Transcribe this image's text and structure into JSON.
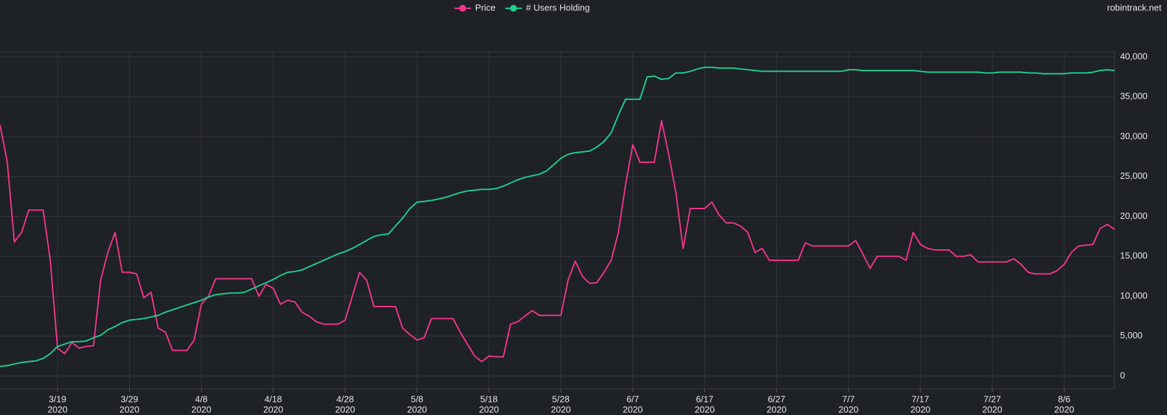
{
  "chart_data": {
    "type": "line",
    "watermark": "robintrack.net",
    "x": [
      "2020-03-11",
      "2020-03-12",
      "2020-03-13",
      "2020-03-14",
      "2020-03-15",
      "2020-03-16",
      "2020-03-17",
      "2020-03-18",
      "2020-03-19",
      "2020-03-20",
      "2020-03-21",
      "2020-03-22",
      "2020-03-23",
      "2020-03-24",
      "2020-03-25",
      "2020-03-26",
      "2020-03-27",
      "2020-03-28",
      "2020-03-29",
      "2020-03-30",
      "2020-03-31",
      "2020-04-01",
      "2020-04-02",
      "2020-04-03",
      "2020-04-04",
      "2020-04-05",
      "2020-04-06",
      "2020-04-07",
      "2020-04-08",
      "2020-04-09",
      "2020-04-10",
      "2020-04-11",
      "2020-04-12",
      "2020-04-13",
      "2020-04-14",
      "2020-04-15",
      "2020-04-16",
      "2020-04-17",
      "2020-04-18",
      "2020-04-19",
      "2020-04-20",
      "2020-04-21",
      "2020-04-22",
      "2020-04-23",
      "2020-04-24",
      "2020-04-25",
      "2020-04-26",
      "2020-04-27",
      "2020-04-28",
      "2020-04-29",
      "2020-04-30",
      "2020-05-01",
      "2020-05-02",
      "2020-05-03",
      "2020-05-04",
      "2020-05-05",
      "2020-05-06",
      "2020-05-07",
      "2020-05-08",
      "2020-05-09",
      "2020-05-10",
      "2020-05-11",
      "2020-05-12",
      "2020-05-13",
      "2020-05-14",
      "2020-05-15",
      "2020-05-16",
      "2020-05-17",
      "2020-05-18",
      "2020-05-19",
      "2020-05-20",
      "2020-05-21",
      "2020-05-22",
      "2020-05-23",
      "2020-05-24",
      "2020-05-25",
      "2020-05-26",
      "2020-05-27",
      "2020-05-28",
      "2020-05-29",
      "2020-05-30",
      "2020-05-31",
      "2020-06-01",
      "2020-06-02",
      "2020-06-03",
      "2020-06-04",
      "2020-06-05",
      "2020-06-06",
      "2020-06-07",
      "2020-06-08",
      "2020-06-09",
      "2020-06-10",
      "2020-06-11",
      "2020-06-12",
      "2020-06-13",
      "2020-06-14",
      "2020-06-15",
      "2020-06-16",
      "2020-06-17",
      "2020-06-18",
      "2020-06-19",
      "2020-06-20",
      "2020-06-21",
      "2020-06-22",
      "2020-06-23",
      "2020-06-24",
      "2020-06-25",
      "2020-06-26",
      "2020-06-27",
      "2020-06-28",
      "2020-06-29",
      "2020-06-30",
      "2020-07-01",
      "2020-07-02",
      "2020-07-03",
      "2020-07-04",
      "2020-07-05",
      "2020-07-06",
      "2020-07-07",
      "2020-07-08",
      "2020-07-09",
      "2020-07-10",
      "2020-07-11",
      "2020-07-12",
      "2020-07-13",
      "2020-07-14",
      "2020-07-15",
      "2020-07-16",
      "2020-07-17",
      "2020-07-18",
      "2020-07-19",
      "2020-07-20",
      "2020-07-21",
      "2020-07-22",
      "2020-07-23",
      "2020-07-24",
      "2020-07-25",
      "2020-07-26",
      "2020-07-27",
      "2020-07-28",
      "2020-07-29",
      "2020-07-30",
      "2020-07-31",
      "2020-08-01",
      "2020-08-02",
      "2020-08-03",
      "2020-08-04",
      "2020-08-05",
      "2020-08-06",
      "2020-08-07",
      "2020-08-08",
      "2020-08-09",
      "2020-08-10",
      "2020-08-11",
      "2020-08-12",
      "2020-08-13"
    ],
    "series": [
      {
        "name": "Price",
        "color": "#f0358c",
        "values": [
          31500,
          26900,
          16800,
          18000,
          20800,
          20800,
          20800,
          14500,
          3500,
          2800,
          4200,
          3500,
          3700,
          3800,
          12000,
          15500,
          18000,
          13000,
          13000,
          12800,
          9800,
          10500,
          6000,
          5500,
          3200,
          3200,
          3200,
          4500,
          9000,
          10000,
          12200,
          12200,
          12200,
          12200,
          12200,
          12200,
          10000,
          11500,
          11000,
          9000,
          9500,
          9300,
          8000,
          7500,
          6800,
          6500,
          6500,
          6500,
          7000,
          10000,
          13000,
          12000,
          8700,
          8700,
          8700,
          8700,
          6000,
          5200,
          4500,
          4800,
          7200,
          7200,
          7200,
          7200,
          5500,
          4000,
          2500,
          1800,
          2500,
          2400,
          2400,
          6500,
          6800,
          7500,
          8200,
          7600,
          7600,
          7600,
          7600,
          12000,
          14400,
          12500,
          11600,
          11700,
          13000,
          14500,
          18000,
          24000,
          29000,
          26800,
          26800,
          26800,
          32000,
          27800,
          23000,
          16000,
          21000,
          21000,
          21000,
          21800,
          20200,
          19200,
          19200,
          18800,
          18000,
          15500,
          16000,
          14500,
          14500,
          14500,
          14500,
          14500,
          16700,
          16300,
          16300,
          16300,
          16300,
          16300,
          16300,
          17000,
          15300,
          13500,
          15000,
          15000,
          15000,
          15000,
          14500,
          18000,
          16500,
          16000,
          15800,
          15800,
          15800,
          15000,
          15000,
          15200,
          14300,
          14300,
          14300,
          14300,
          14300,
          14700,
          14000,
          13000,
          12800,
          12800,
          12800,
          13200,
          14000,
          15500,
          16300,
          16400,
          16500,
          18500,
          19000,
          18400
        ]
      },
      {
        "name": "# Users Holding",
        "color": "#1dd08f",
        "values": [
          1200,
          1300,
          1500,
          1700,
          1800,
          1900,
          2200,
          2800,
          3700,
          4000,
          4300,
          4300,
          4400,
          4800,
          5100,
          5800,
          6200,
          6700,
          7000,
          7100,
          7200,
          7400,
          7600,
          8000,
          8300,
          8600,
          8900,
          9200,
          9500,
          9900,
          10200,
          10300,
          10400,
          10400,
          10500,
          10900,
          11300,
          11700,
          12100,
          12600,
          13000,
          13100,
          13300,
          13700,
          14100,
          14500,
          14900,
          15300,
          15600,
          16000,
          16500,
          17000,
          17500,
          17700,
          17800,
          18800,
          19800,
          21000,
          21800,
          21900,
          22000,
          22200,
          22400,
          22700,
          23000,
          23200,
          23300,
          23400,
          23400,
          23500,
          23800,
          24200,
          24600,
          24900,
          25100,
          25300,
          25700,
          26500,
          27300,
          27800,
          28000,
          28100,
          28200,
          28700,
          29400,
          30500,
          32700,
          34700,
          34700,
          34700,
          37500,
          37600,
          37200,
          37300,
          38000,
          38000,
          38200,
          38500,
          38700,
          38700,
          38600,
          38600,
          38600,
          38500,
          38400,
          38300,
          38200,
          38200,
          38200,
          38200,
          38200,
          38200,
          38200,
          38200,
          38200,
          38200,
          38200,
          38200,
          38400,
          38400,
          38300,
          38300,
          38300,
          38300,
          38300,
          38300,
          38300,
          38300,
          38200,
          38100,
          38100,
          38100,
          38100,
          38100,
          38100,
          38100,
          38100,
          38000,
          38000,
          38100,
          38100,
          38100,
          38100,
          38000,
          38000,
          37900,
          37900,
          37900,
          37900,
          38000,
          38000,
          38000,
          38100,
          38300,
          38400,
          38300
        ]
      }
    ],
    "xlim": [
      "2020-03-11",
      "2020-08-13"
    ],
    "xticks": [
      {
        "value": "2020-03-19",
        "label": [
          "3/19",
          "2020"
        ]
      },
      {
        "value": "2020-03-29",
        "label": [
          "3/29",
          "2020"
        ]
      },
      {
        "value": "2020-04-08",
        "label": [
          "4/8",
          "2020"
        ]
      },
      {
        "value": "2020-04-18",
        "label": [
          "4/18",
          "2020"
        ]
      },
      {
        "value": "2020-04-28",
        "label": [
          "4/28",
          "2020"
        ]
      },
      {
        "value": "2020-05-08",
        "label": [
          "5/8",
          "2020"
        ]
      },
      {
        "value": "2020-05-18",
        "label": [
          "5/18",
          "2020"
        ]
      },
      {
        "value": "2020-05-28",
        "label": [
          "5/28",
          "2020"
        ]
      },
      {
        "value": "2020-06-07",
        "label": [
          "6/7",
          "2020"
        ]
      },
      {
        "value": "2020-06-17",
        "label": [
          "6/17",
          "2020"
        ]
      },
      {
        "value": "2020-06-27",
        "label": [
          "6/27",
          "2020"
        ]
      },
      {
        "value": "2020-07-07",
        "label": [
          "7/7",
          "2020"
        ]
      },
      {
        "value": "2020-07-17",
        "label": [
          "7/17",
          "2020"
        ]
      },
      {
        "value": "2020-07-27",
        "label": [
          "7/27",
          "2020"
        ]
      },
      {
        "value": "2020-08-06",
        "label": [
          "8/6",
          "2020"
        ]
      }
    ],
    "ylim": [
      -1600,
      40650
    ],
    "yticks": [
      0,
      {
        "value": 5000,
        "label": "5,000"
      },
      {
        "value": 10000,
        "label": "10,000"
      },
      {
        "value": 15000,
        "label": "15,000"
      },
      {
        "value": 20000,
        "label": "20,000"
      },
      {
        "value": 25000,
        "label": "25,000"
      },
      {
        "value": 30000,
        "label": "30,000"
      },
      {
        "value": 35000,
        "label": "35,000"
      },
      {
        "value": 40000,
        "label": "40,000"
      }
    ],
    "grid": true,
    "legend": "top"
  }
}
